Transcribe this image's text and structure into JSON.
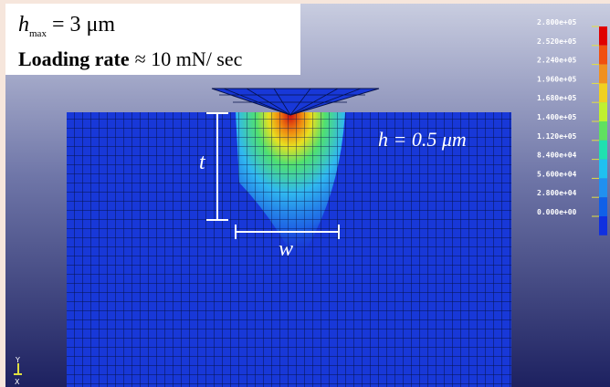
{
  "info_box": {
    "hmax_symbol": "h",
    "hmax_subscript": "max",
    "hmax_value": "= 3 μm",
    "loading_label": "Loading rate",
    "loading_value": "≈ 10 mN/ sec"
  },
  "depth_label": "h = 0.5 μm",
  "dimension_t": "t",
  "dimension_w": "w",
  "legend": {
    "labels": [
      "2.800e+05",
      "2.520e+05",
      "2.240e+05",
      "1.960e+05",
      "1.680e+05",
      "1.400e+05",
      "1.120e+05",
      "8.400e+04",
      "5.600e+04",
      "2.800e+04",
      "0.000e+00"
    ]
  },
  "axis_triad": {
    "y": "Y",
    "x": "X"
  }
}
